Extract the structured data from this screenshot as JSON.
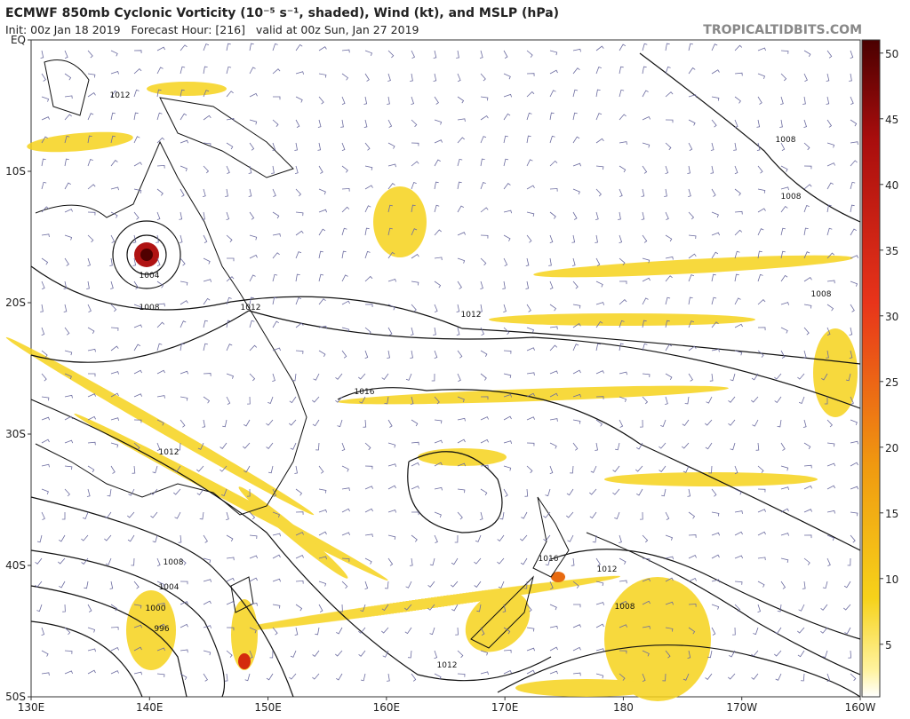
{
  "header": {
    "title": "ECMWF 850mb Cyclonic Vorticity (10⁻⁵ s⁻¹, shaded), Wind (kt), and MSLP (hPa)",
    "subtitle": "Init: 00z Jan 18 2019   Forecast Hour: [216]   valid at 00z Sun, Jan 27 2019",
    "site": "TROPICALTIDBITS.COM"
  },
  "map": {
    "lat_ticks": [
      {
        "value": 0,
        "label": "EQ"
      },
      {
        "value": -10,
        "label": "10S"
      },
      {
        "value": -20,
        "label": "20S"
      },
      {
        "value": -30,
        "label": "30S"
      },
      {
        "value": -40,
        "label": "40S"
      },
      {
        "value": -50,
        "label": "50S"
      }
    ],
    "lon_ticks": [
      {
        "value": 130,
        "label": "130E"
      },
      {
        "value": 140,
        "label": "140E"
      },
      {
        "value": 150,
        "label": "150E"
      },
      {
        "value": 160,
        "label": "160E"
      },
      {
        "value": 170,
        "label": "170E"
      },
      {
        "value": 180,
        "label": "180"
      },
      {
        "value": 190,
        "label": "170W"
      },
      {
        "value": 200,
        "label": "160W"
      }
    ],
    "contour_labels": [
      "1012",
      "1004",
      "1008",
      "1012",
      "1012",
      "1016",
      "1012",
      "1008",
      "1004",
      "1000",
      "996",
      "1016",
      "1012",
      "1008",
      "1012",
      "1008",
      "1008",
      "1008"
    ]
  },
  "colorbar": {
    "range": [
      1,
      51
    ],
    "ticks": [
      5,
      10,
      15,
      20,
      25,
      30,
      35,
      40,
      45,
      50
    ]
  }
}
